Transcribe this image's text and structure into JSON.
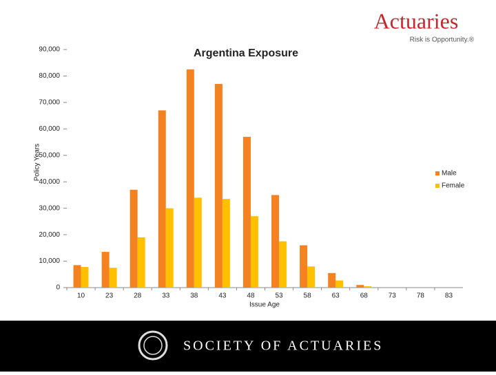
{
  "header": {
    "logo": "Actuaries",
    "tagline": "Risk is Opportunity.®"
  },
  "chart_data": {
    "type": "bar",
    "title": "Argentina Exposure",
    "x_label": "Issue Age",
    "y_label": "Policy Years",
    "categories": [
      "10",
      "23",
      "28",
      "33",
      "38",
      "43",
      "48",
      "53",
      "58",
      "63",
      "68",
      "73",
      "78",
      "83"
    ],
    "series": [
      {
        "name": "Male",
        "color": "#f58220",
        "values": [
          8500,
          13500,
          37000,
          67000,
          82500,
          77000,
          57000,
          35000,
          16000,
          5500,
          1000,
          0,
          0,
          0
        ]
      },
      {
        "name": "Female",
        "color": "#ffc000",
        "values": [
          7800,
          7500,
          19000,
          30000,
          34000,
          33500,
          27000,
          17500,
          8000,
          2700,
          500,
          0,
          0,
          0
        ]
      }
    ],
    "ylim": [
      0,
      90000
    ],
    "yticks": [
      0,
      {
        "value": 10000,
        "label": "10,000"
      },
      {
        "value": 20000,
        "label": "20,000"
      },
      {
        "value": 30000,
        "label": "30,000"
      },
      {
        "value": 40000,
        "label": "40,000"
      },
      {
        "value": 50000,
        "label": "50,000"
      },
      {
        "value": 60000,
        "label": "60,000"
      },
      {
        "value": 70000,
        "label": "70,000"
      },
      {
        "value": 80000,
        "label": "80,000"
      },
      {
        "value": 90000,
        "label": "90,000"
      }
    ],
    "grid": false,
    "legend": "right"
  },
  "footer": {
    "organization": "SOCIETY OF ACTUARIES"
  }
}
